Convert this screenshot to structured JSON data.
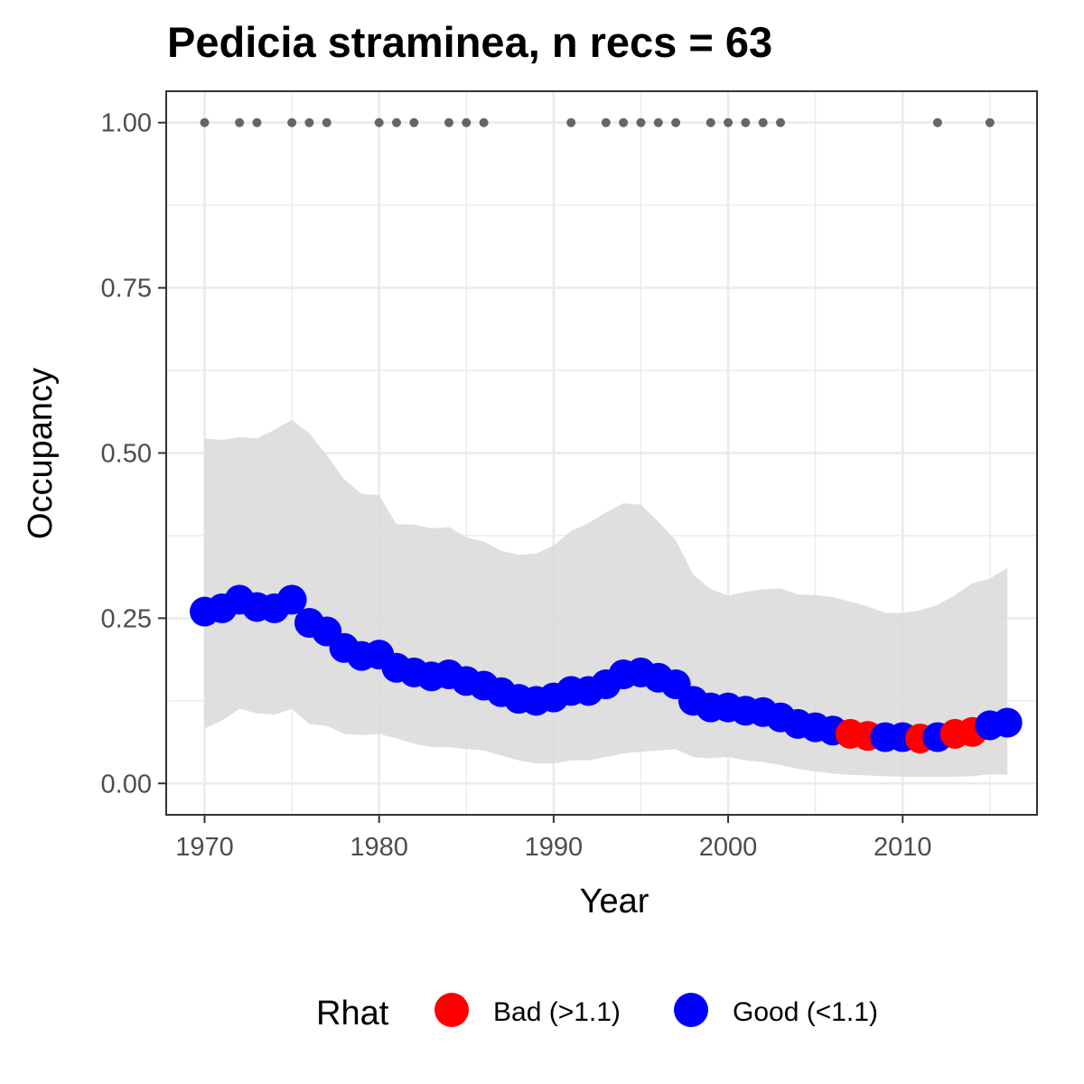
{
  "chart_data": {
    "type": "line",
    "title": "Pedicia straminea, n recs = 63",
    "xlabel": "Year",
    "ylabel": "Occupancy",
    "xlim": [
      1967.8,
      2017.7
    ],
    "ylim": [
      -0.0475,
      1.0475
    ],
    "x_ticks": [
      1970,
      1980,
      1990,
      2000,
      2010
    ],
    "x_tick_labels": [
      "1970",
      "1980",
      "1990",
      "2000",
      "2010"
    ],
    "y_ticks": [
      0,
      0.25,
      0.5,
      0.75,
      1.0
    ],
    "y_tick_labels": [
      "0.00",
      "0.25",
      "0.50",
      "0.75",
      "1.00"
    ],
    "grid": true,
    "colors": {
      "good": "#0000ff",
      "bad": "#ff0000",
      "ribbon": "#d9d9d9",
      "records": "#666666",
      "grid": "#ebebeb",
      "panel_border": "#333333"
    },
    "legend": {
      "title": "Rhat",
      "position": "bottom",
      "entries": [
        {
          "label": "Bad (>1.1)",
          "color": "#ff0000"
        },
        {
          "label": "Good (<1.1)",
          "color": "#0000ff"
        }
      ]
    },
    "series": [
      {
        "kind": "occupancy",
        "points": [
          {
            "x": 1970,
            "y": 0.26,
            "rhat": "good"
          },
          {
            "x": 1971,
            "y": 0.265,
            "rhat": "good"
          },
          {
            "x": 1972,
            "y": 0.278,
            "rhat": "good"
          },
          {
            "x": 1973,
            "y": 0.267,
            "rhat": "good"
          },
          {
            "x": 1974,
            "y": 0.265,
            "rhat": "good"
          },
          {
            "x": 1975,
            "y": 0.278,
            "rhat": "good"
          },
          {
            "x": 1976,
            "y": 0.243,
            "rhat": "good"
          },
          {
            "x": 1977,
            "y": 0.23,
            "rhat": "good"
          },
          {
            "x": 1978,
            "y": 0.205,
            "rhat": "good"
          },
          {
            "x": 1979,
            "y": 0.193,
            "rhat": "good"
          },
          {
            "x": 1980,
            "y": 0.195,
            "rhat": "good"
          },
          {
            "x": 1981,
            "y": 0.175,
            "rhat": "good"
          },
          {
            "x": 1982,
            "y": 0.168,
            "rhat": "good"
          },
          {
            "x": 1983,
            "y": 0.162,
            "rhat": "good"
          },
          {
            "x": 1984,
            "y": 0.165,
            "rhat": "good"
          },
          {
            "x": 1985,
            "y": 0.155,
            "rhat": "good"
          },
          {
            "x": 1986,
            "y": 0.148,
            "rhat": "good"
          },
          {
            "x": 1987,
            "y": 0.138,
            "rhat": "good"
          },
          {
            "x": 1988,
            "y": 0.128,
            "rhat": "good"
          },
          {
            "x": 1989,
            "y": 0.125,
            "rhat": "good"
          },
          {
            "x": 1990,
            "y": 0.13,
            "rhat": "good"
          },
          {
            "x": 1991,
            "y": 0.14,
            "rhat": "good"
          },
          {
            "x": 1992,
            "y": 0.14,
            "rhat": "good"
          },
          {
            "x": 1993,
            "y": 0.15,
            "rhat": "good"
          },
          {
            "x": 1994,
            "y": 0.165,
            "rhat": "good"
          },
          {
            "x": 1995,
            "y": 0.168,
            "rhat": "good"
          },
          {
            "x": 1996,
            "y": 0.16,
            "rhat": "good"
          },
          {
            "x": 1997,
            "y": 0.15,
            "rhat": "good"
          },
          {
            "x": 1998,
            "y": 0.125,
            "rhat": "good"
          },
          {
            "x": 1999,
            "y": 0.115,
            "rhat": "good"
          },
          {
            "x": 2000,
            "y": 0.115,
            "rhat": "good"
          },
          {
            "x": 2001,
            "y": 0.11,
            "rhat": "good"
          },
          {
            "x": 2002,
            "y": 0.108,
            "rhat": "good"
          },
          {
            "x": 2003,
            "y": 0.1,
            "rhat": "good"
          },
          {
            "x": 2004,
            "y": 0.09,
            "rhat": "good"
          },
          {
            "x": 2005,
            "y": 0.085,
            "rhat": "good"
          },
          {
            "x": 2006,
            "y": 0.08,
            "rhat": "good"
          },
          {
            "x": 2007,
            "y": 0.075,
            "rhat": "bad"
          },
          {
            "x": 2008,
            "y": 0.072,
            "rhat": "bad"
          },
          {
            "x": 2009,
            "y": 0.07,
            "rhat": "good"
          },
          {
            "x": 2010,
            "y": 0.07,
            "rhat": "good"
          },
          {
            "x": 2011,
            "y": 0.068,
            "rhat": "bad"
          },
          {
            "x": 2012,
            "y": 0.07,
            "rhat": "good"
          },
          {
            "x": 2013,
            "y": 0.075,
            "rhat": "bad"
          },
          {
            "x": 2014,
            "y": 0.078,
            "rhat": "bad"
          },
          {
            "x": 2015,
            "y": 0.088,
            "rhat": "good"
          },
          {
            "x": 2016,
            "y": 0.092,
            "rhat": "good"
          }
        ]
      },
      {
        "kind": "credible_interval",
        "x": [
          1970,
          1971,
          1972,
          1973,
          1974,
          1975,
          1976,
          1977,
          1978,
          1979,
          1980,
          1981,
          1982,
          1983,
          1984,
          1985,
          1986,
          1987,
          1988,
          1989,
          1990,
          1991,
          1992,
          1993,
          1994,
          1995,
          1996,
          1997,
          1998,
          1999,
          2000,
          2001,
          2002,
          2003,
          2004,
          2005,
          2006,
          2007,
          2008,
          2009,
          2010,
          2011,
          2012,
          2013,
          2014,
          2015,
          2016
        ],
        "lower": [
          0.083,
          0.095,
          0.113,
          0.106,
          0.104,
          0.113,
          0.09,
          0.087,
          0.075,
          0.073,
          0.075,
          0.068,
          0.06,
          0.055,
          0.055,
          0.052,
          0.05,
          0.042,
          0.035,
          0.03,
          0.03,
          0.035,
          0.035,
          0.04,
          0.045,
          0.048,
          0.05,
          0.052,
          0.04,
          0.038,
          0.04,
          0.035,
          0.032,
          0.028,
          0.022,
          0.018,
          0.015,
          0.013,
          0.012,
          0.011,
          0.01,
          0.01,
          0.01,
          0.01,
          0.011,
          0.014,
          0.013
        ],
        "upper": [
          0.522,
          0.52,
          0.524,
          0.522,
          0.535,
          0.55,
          0.53,
          0.497,
          0.46,
          0.438,
          0.436,
          0.392,
          0.392,
          0.386,
          0.388,
          0.372,
          0.366,
          0.352,
          0.346,
          0.348,
          0.36,
          0.382,
          0.394,
          0.41,
          0.424,
          0.422,
          0.396,
          0.368,
          0.316,
          0.294,
          0.284,
          0.29,
          0.294,
          0.295,
          0.286,
          0.285,
          0.282,
          0.275,
          0.268,
          0.258,
          0.258,
          0.262,
          0.27,
          0.285,
          0.303,
          0.31,
          0.326
        ]
      },
      {
        "kind": "records",
        "y": 1.0,
        "x": [
          1970,
          1972,
          1973,
          1975,
          1976,
          1977,
          1980,
          1981,
          1982,
          1984,
          1985,
          1986,
          1991,
          1993,
          1994,
          1995,
          1996,
          1997,
          1999,
          2000,
          2001,
          2002,
          2003,
          2012,
          2015
        ]
      }
    ]
  }
}
